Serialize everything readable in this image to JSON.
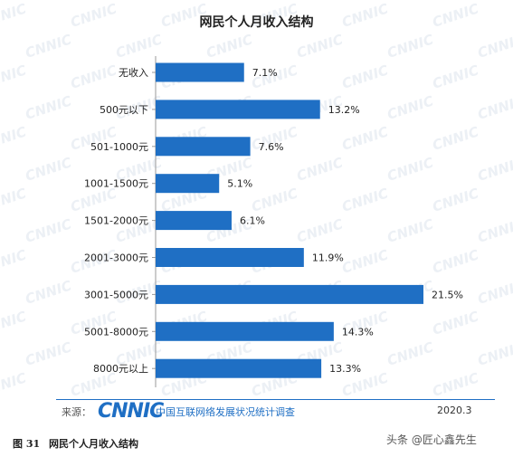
{
  "chart_data": {
    "type": "bar",
    "orientation": "horizontal",
    "title": "网民个人月收入结构",
    "categories": [
      "无收入",
      "500元以下",
      "501-1000元",
      "1001-1500元",
      "1501-2000元",
      "2001-3000元",
      "3001-5000元",
      "5001-8000元",
      "8000元以上"
    ],
    "values": [
      7.1,
      13.2,
      7.6,
      5.1,
      6.1,
      11.9,
      21.5,
      14.3,
      13.3
    ],
    "value_labels": [
      "7.1%",
      "13.2%",
      "7.6%",
      "5.1%",
      "6.1%",
      "11.9%",
      "21.5%",
      "14.3%",
      "13.3%"
    ],
    "xlim": [
      0,
      21.5
    ],
    "grid": false,
    "bar_color": "#1f6fc4"
  },
  "footer": {
    "source_label": "来源：",
    "brand": "CNNIC",
    "org": "中国互联网络发展状况统计调查",
    "date": "2020.3"
  },
  "watermark_text": "CNNIC",
  "caption": {
    "label": "图 31",
    "text": "网民个人月收入结构"
  },
  "credit": "头条 @匠心鑫先生"
}
